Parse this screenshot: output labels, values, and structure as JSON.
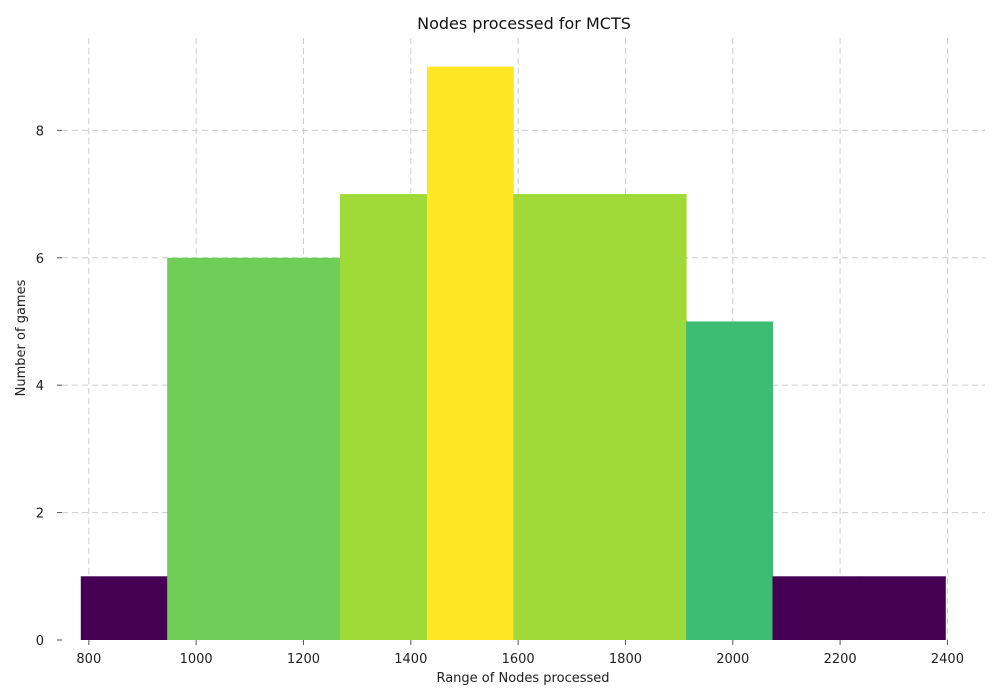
{
  "chart_data": {
    "type": "bar",
    "title": "Nodes processed for MCTS",
    "xlabel": "Range of Nodes processed",
    "ylabel": "Number of games",
    "xlim": [
      750,
      2470
    ],
    "ylim": [
      0,
      9.45
    ],
    "xticks": [
      800,
      1000,
      1200,
      1400,
      1600,
      1800,
      2000,
      2200,
      2400
    ],
    "yticks": [
      0,
      2,
      4,
      6,
      8
    ],
    "grid": true,
    "bins": [
      {
        "x0": 785,
        "x1": 946,
        "count": 1,
        "color": "#440154"
      },
      {
        "x0": 946,
        "x1": 1107,
        "count": 6,
        "color": "#6ece58"
      },
      {
        "x0": 1107,
        "x1": 1268,
        "count": 6,
        "color": "#6ece58"
      },
      {
        "x0": 1268,
        "x1": 1430,
        "count": 7,
        "color": "#a0da39"
      },
      {
        "x0": 1430,
        "x1": 1591,
        "count": 9,
        "color": "#fde725"
      },
      {
        "x0": 1591,
        "x1": 1752,
        "count": 7,
        "color": "#a0da39"
      },
      {
        "x0": 1752,
        "x1": 1913,
        "count": 7,
        "color": "#a0da39"
      },
      {
        "x0": 1913,
        "x1": 2074,
        "count": 5,
        "color": "#3dbc74"
      },
      {
        "x0": 2074,
        "x1": 2235,
        "count": 1,
        "color": "#440154"
      },
      {
        "x0": 2235,
        "x1": 2396,
        "count": 1,
        "color": "#440154"
      }
    ]
  }
}
